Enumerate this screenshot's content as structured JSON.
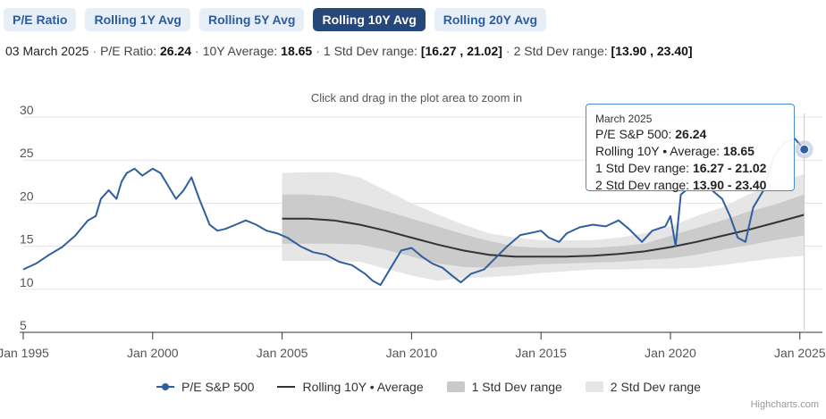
{
  "tabs": [
    {
      "label": "P/E Ratio",
      "active": false
    },
    {
      "label": "Rolling 1Y Avg",
      "active": false
    },
    {
      "label": "Rolling 5Y Avg",
      "active": false
    },
    {
      "label": "Rolling 10Y Avg",
      "active": true
    },
    {
      "label": "Rolling 20Y Avg",
      "active": false
    }
  ],
  "info": {
    "date": "03 March 2025",
    "pe_label": "P/E Ratio:",
    "pe_value": "26.24",
    "avg_label": "10Y Average:",
    "avg_value": "18.65",
    "std1_label": "1 Std Dev range:",
    "std1_value": "[16.27 , 21.02]",
    "std2_label": "2 Std Dev range:",
    "std2_value": "[13.90 , 23.40]"
  },
  "tooltip": {
    "date": "March 2025",
    "pe_label": "P/E S&P 500: ",
    "pe_value": "26.24",
    "avg_label": "Rolling 10Y • Average: ",
    "avg_value": "18.65",
    "std1_label": "1 Std Dev range: ",
    "std1_value": "16.27 - 21.02",
    "std2_label": "2 Std Dev range: ",
    "std2_value": "13.90 - 23.40"
  },
  "zoom_hint": "Click and drag in the plot area to zoom in",
  "legend": {
    "pe": "P/E S&P 500",
    "avg": "Rolling 10Y • Average",
    "std1": "1 Std Dev range",
    "std2": "2 Std Dev range"
  },
  "credits": "Highcharts.com",
  "colors": {
    "pe_line": "#2f5f9e",
    "avg_line": "#333333",
    "band1": "#c9c9c9",
    "band2": "#e6e6e6",
    "active_tab": "#25477a",
    "tooltip_border": "#4a8bd4"
  },
  "chart_data": {
    "type": "line",
    "x_axis": {
      "type": "date",
      "tick_labels": [
        "Jan 1995",
        "Jan 2000",
        "Jan 2005",
        "Jan 2010",
        "Jan 2015",
        "Jan 2020",
        "Jan 2025"
      ],
      "range": [
        1995.0,
        2025.25
      ]
    },
    "y_axis": {
      "ticks": [
        5,
        10,
        15,
        20,
        25,
        30
      ],
      "range": [
        5,
        30
      ]
    },
    "grid": true,
    "legend_placement": "bottom",
    "series": [
      {
        "name": "P/E S&P 500",
        "x": [
          1995.0,
          1995.5,
          1996.0,
          1996.5,
          1997.0,
          1997.5,
          1997.8,
          1998.0,
          1998.3,
          1998.6,
          1998.8,
          1999.0,
          1999.3,
          1999.6,
          2000.0,
          2000.3,
          2000.6,
          2000.9,
          2001.2,
          2001.5,
          2001.8,
          2002.2,
          2002.5,
          2002.8,
          2003.2,
          2003.6,
          2004.0,
          2004.4,
          2004.8,
          2005.2,
          2005.7,
          2006.2,
          2006.7,
          2007.2,
          2007.7,
          2008.2,
          2008.5,
          2008.8,
          2009.2,
          2009.6,
          2010.0,
          2010.4,
          2010.8,
          2011.2,
          2011.6,
          2011.9,
          2012.3,
          2012.8,
          2013.2,
          2013.7,
          2014.2,
          2014.7,
          2015.0,
          2015.3,
          2015.7,
          2016.0,
          2016.5,
          2017.0,
          2017.5,
          2018.0,
          2018.4,
          2018.9,
          2019.3,
          2019.8,
          2020.0,
          2020.2,
          2020.4,
          2020.8,
          2021.2,
          2021.6,
          2022.0,
          2022.3,
          2022.6,
          2022.9,
          2023.2,
          2023.6,
          2024.0,
          2024.4,
          2024.8,
          2025.17
        ],
        "y": [
          12.3,
          13.0,
          14.0,
          14.9,
          16.2,
          18.0,
          18.5,
          20.5,
          21.5,
          20.5,
          22.5,
          23.5,
          24.0,
          23.2,
          24.0,
          23.5,
          22.0,
          20.5,
          21.5,
          23.0,
          20.5,
          17.5,
          16.8,
          17.0,
          17.5,
          18.0,
          17.5,
          16.8,
          16.5,
          16.0,
          15.0,
          14.3,
          14.0,
          13.2,
          12.8,
          11.8,
          11.0,
          10.5,
          12.5,
          14.5,
          14.8,
          13.8,
          13.0,
          12.5,
          11.5,
          10.8,
          11.8,
          12.3,
          13.5,
          15.0,
          16.3,
          16.6,
          16.8,
          16.0,
          15.5,
          16.5,
          17.2,
          17.5,
          17.3,
          18.0,
          17.0,
          15.5,
          16.8,
          17.3,
          18.5,
          15.0,
          21.0,
          22.0,
          22.5,
          21.5,
          20.5,
          18.5,
          16.0,
          15.5,
          19.5,
          21.5,
          25.5,
          27.0,
          27.5,
          26.24
        ]
      },
      {
        "name": "Rolling 10Y • Average",
        "x": [
          2005.0,
          2006.0,
          2007.0,
          2008.0,
          2009.0,
          2010.0,
          2011.0,
          2012.0,
          2013.0,
          2014.0,
          2015.0,
          2016.0,
          2017.0,
          2018.0,
          2019.0,
          2020.0,
          2021.0,
          2022.0,
          2023.0,
          2024.0,
          2025.17
        ],
        "y": [
          18.2,
          18.2,
          18.0,
          17.5,
          16.8,
          16.0,
          15.2,
          14.5,
          14.0,
          13.8,
          13.8,
          13.8,
          13.9,
          14.1,
          14.4,
          14.9,
          15.5,
          16.2,
          16.9,
          17.7,
          18.65
        ]
      },
      {
        "name": "1 Std Dev range",
        "x": [
          2005.0,
          2006.0,
          2007.0,
          2008.0,
          2009.0,
          2010.0,
          2011.0,
          2012.0,
          2013.0,
          2014.0,
          2015.0,
          2016.0,
          2017.0,
          2018.0,
          2019.0,
          2020.0,
          2021.0,
          2022.0,
          2023.0,
          2024.0,
          2025.17
        ],
        "low": [
          15.3,
          15.3,
          15.3,
          15.2,
          14.6,
          13.8,
          13.0,
          12.6,
          12.5,
          12.7,
          12.9,
          13.0,
          13.1,
          13.2,
          13.4,
          13.6,
          14.0,
          14.6,
          15.1,
          15.7,
          16.27
        ],
        "high": [
          21.0,
          21.0,
          20.8,
          20.0,
          19.1,
          18.2,
          17.3,
          16.4,
          15.6,
          15.0,
          14.8,
          14.8,
          14.8,
          15.0,
          15.3,
          16.2,
          17.1,
          18.0,
          19.0,
          19.8,
          21.02
        ]
      },
      {
        "name": "2 Std Dev range",
        "x": [
          2005.0,
          2006.0,
          2007.0,
          2008.0,
          2009.0,
          2010.0,
          2011.0,
          2012.0,
          2013.0,
          2014.0,
          2015.0,
          2016.0,
          2017.0,
          2018.0,
          2019.0,
          2020.0,
          2021.0,
          2022.0,
          2023.0,
          2024.0,
          2025.17
        ],
        "low": [
          13.3,
          13.3,
          13.3,
          13.2,
          12.4,
          11.6,
          11.0,
          11.3,
          11.4,
          11.6,
          11.9,
          12.1,
          12.3,
          12.3,
          12.4,
          12.4,
          12.5,
          12.8,
          13.2,
          13.6,
          13.9
        ],
        "high": [
          23.5,
          23.6,
          23.6,
          23.0,
          21.5,
          20.0,
          18.7,
          17.5,
          16.5,
          16.0,
          15.7,
          15.7,
          15.7,
          16.0,
          16.5,
          17.3,
          18.5,
          19.5,
          21.0,
          22.2,
          23.4
        ]
      }
    ]
  }
}
